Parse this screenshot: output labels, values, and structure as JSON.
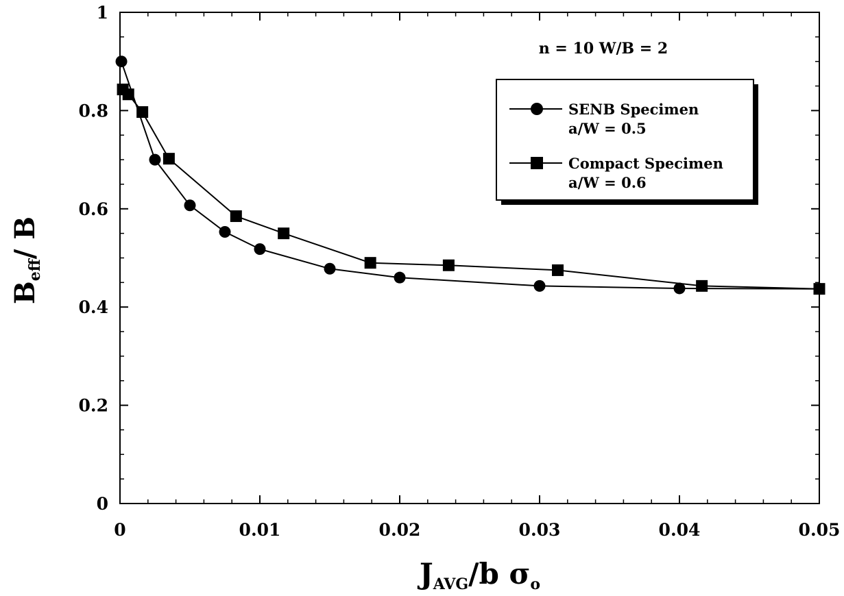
{
  "chart_data": {
    "type": "line",
    "annotation": "n = 10  W/B = 2",
    "xlabel": {
      "main": "J",
      "sub": "AVG",
      "rest": "/b  σ",
      "sub2": "o"
    },
    "ylabel": {
      "main": "B",
      "sub": "eff",
      "rest": "/  B"
    },
    "xlim": [
      0,
      0.05
    ],
    "ylim": [
      0,
      1
    ],
    "x_ticks": [
      "0",
      "0.01",
      "0.02",
      "0.03",
      "0.04",
      "0.05"
    ],
    "y_ticks": [
      "0",
      "0.2",
      "0.4",
      "0.6",
      "0.8",
      "1"
    ],
    "grid": false,
    "legend_position": "top-right",
    "series": [
      {
        "name": "SENB Specimen",
        "name_line2": "a/W  =  0.5",
        "marker": "circle",
        "x": [
          0.0001,
          0.0025,
          0.005,
          0.0075,
          0.01,
          0.015,
          0.02,
          0.03,
          0.04,
          0.05
        ],
        "y": [
          0.9,
          0.7,
          0.607,
          0.553,
          0.518,
          0.478,
          0.46,
          0.443,
          0.438,
          0.437
        ]
      },
      {
        "name": "Compact Specimen",
        "name_line2": "a/W  =  0.6",
        "marker": "square",
        "x": [
          0.0002,
          0.0006,
          0.0016,
          0.0035,
          0.0083,
          0.0117,
          0.0179,
          0.0235,
          0.0313,
          0.0416,
          0.05
        ],
        "y": [
          0.843,
          0.833,
          0.797,
          0.702,
          0.585,
          0.55,
          0.49,
          0.485,
          0.475,
          0.443,
          0.437
        ]
      }
    ],
    "colors": {
      "line": "#000000",
      "marker": "#000000",
      "legend_shadow": "#000000"
    }
  }
}
